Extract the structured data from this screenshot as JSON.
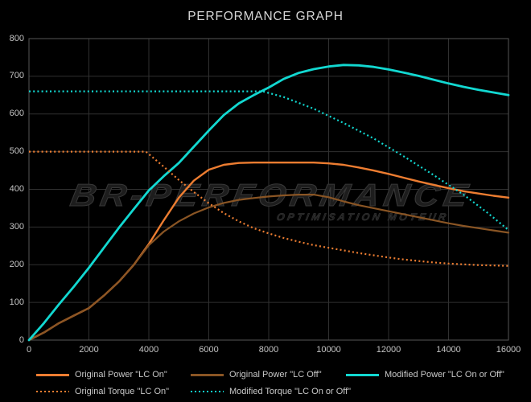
{
  "title": "PERFORMANCE GRAPH",
  "watermark": {
    "line1": "BR-PERFORMANCE",
    "line2": "OPTIMISATION MOTEUR"
  },
  "colors": {
    "background": "#000000",
    "grid": "#303030",
    "plot_border": "#565656",
    "axis_text": "#c4c4c4",
    "title_text": "#d6d6d6",
    "orange": "#ED7D31",
    "brown": "#8A5524",
    "cyan": "#12D8D1"
  },
  "chart_data": {
    "type": "line",
    "title": "PERFORMANCE GRAPH",
    "xlabel": "",
    "ylabel": "",
    "xlim": [
      0,
      16000
    ],
    "ylim": [
      0,
      800
    ],
    "x_ticks": [
      0,
      2000,
      4000,
      6000,
      8000,
      10000,
      12000,
      14000,
      16000
    ],
    "y_ticks": [
      0,
      100,
      200,
      300,
      400,
      500,
      600,
      700,
      800
    ],
    "grid": true,
    "legend_position": "bottom",
    "legend_rows": [
      [
        0,
        1,
        2
      ],
      [
        3,
        4
      ]
    ],
    "series": [
      {
        "name": "Original Power \"LC On\"",
        "color": "#ED7D31",
        "style": "solid",
        "width": 2.4,
        "points": [
          [
            0,
            0
          ],
          [
            500,
            20
          ],
          [
            1000,
            45
          ],
          [
            1500,
            65
          ],
          [
            2000,
            85
          ],
          [
            2500,
            118
          ],
          [
            3000,
            155
          ],
          [
            3500,
            200
          ],
          [
            4000,
            255
          ],
          [
            4500,
            318
          ],
          [
            5000,
            378
          ],
          [
            5500,
            423
          ],
          [
            6000,
            452
          ],
          [
            6500,
            465
          ],
          [
            7000,
            470
          ],
          [
            7500,
            471
          ],
          [
            8000,
            471
          ],
          [
            8500,
            471
          ],
          [
            9000,
            471
          ],
          [
            9500,
            471
          ],
          [
            10000,
            469
          ],
          [
            10500,
            465
          ],
          [
            11000,
            458
          ],
          [
            11500,
            450
          ],
          [
            12000,
            441
          ],
          [
            12500,
            431
          ],
          [
            13000,
            421
          ],
          [
            13500,
            412
          ],
          [
            14000,
            403
          ],
          [
            14500,
            395
          ],
          [
            15000,
            389
          ],
          [
            15500,
            383
          ],
          [
            16000,
            378
          ]
        ]
      },
      {
        "name": "Original Power \"LC Off\"",
        "color": "#8A5524",
        "style": "solid",
        "width": 2.2,
        "points": [
          [
            0,
            0
          ],
          [
            500,
            20
          ],
          [
            1000,
            45
          ],
          [
            1500,
            65
          ],
          [
            2000,
            85
          ],
          [
            2500,
            118
          ],
          [
            3000,
            155
          ],
          [
            3500,
            200
          ],
          [
            4000,
            252
          ],
          [
            4500,
            288
          ],
          [
            5000,
            315
          ],
          [
            5500,
            336
          ],
          [
            6000,
            352
          ],
          [
            6500,
            364
          ],
          [
            7000,
            372
          ],
          [
            7500,
            377
          ],
          [
            8000,
            381
          ],
          [
            8500,
            384
          ],
          [
            9000,
            386
          ],
          [
            9500,
            386
          ],
          [
            10000,
            379
          ],
          [
            10500,
            368
          ],
          [
            11000,
            358
          ],
          [
            11500,
            350
          ],
          [
            12000,
            342
          ],
          [
            12500,
            334
          ],
          [
            13000,
            326
          ],
          [
            13500,
            318
          ],
          [
            14000,
            310
          ],
          [
            14500,
            303
          ],
          [
            15000,
            297
          ],
          [
            15500,
            291
          ],
          [
            16000,
            285
          ]
        ]
      },
      {
        "name": "Modified Power \"LC On or Off\"",
        "color": "#12D8D1",
        "style": "solid",
        "width": 2.8,
        "points": [
          [
            0,
            0
          ],
          [
            500,
            45
          ],
          [
            1000,
            95
          ],
          [
            1500,
            142
          ],
          [
            2000,
            192
          ],
          [
            2500,
            245
          ],
          [
            3000,
            298
          ],
          [
            3500,
            348
          ],
          [
            4000,
            397
          ],
          [
            4500,
            435
          ],
          [
            5000,
            470
          ],
          [
            5500,
            513
          ],
          [
            6000,
            556
          ],
          [
            6500,
            597
          ],
          [
            7000,
            628
          ],
          [
            7500,
            650
          ],
          [
            8000,
            670
          ],
          [
            8500,
            693
          ],
          [
            9000,
            709
          ],
          [
            9500,
            719
          ],
          [
            10000,
            726
          ],
          [
            10500,
            730
          ],
          [
            11000,
            729
          ],
          [
            11500,
            725
          ],
          [
            12000,
            718
          ],
          [
            12500,
            710
          ],
          [
            13000,
            701
          ],
          [
            13500,
            691
          ],
          [
            14000,
            681
          ],
          [
            14500,
            672
          ],
          [
            15000,
            664
          ],
          [
            15500,
            657
          ],
          [
            16000,
            650
          ]
        ]
      },
      {
        "name": "Original Torque \"LC On\"",
        "color": "#ED7D31",
        "style": "dotted",
        "width": 2.2,
        "points": [
          [
            0,
            500
          ],
          [
            3900,
            500
          ],
          [
            4200,
            480
          ],
          [
            4500,
            460
          ],
          [
            5000,
            425
          ],
          [
            5500,
            393
          ],
          [
            6000,
            363
          ],
          [
            6500,
            337
          ],
          [
            7000,
            315
          ],
          [
            7500,
            297
          ],
          [
            8000,
            283
          ],
          [
            8500,
            271
          ],
          [
            9000,
            261
          ],
          [
            9500,
            252
          ],
          [
            10000,
            245
          ],
          [
            10500,
            238
          ],
          [
            11000,
            231
          ],
          [
            11500,
            225
          ],
          [
            12000,
            219
          ],
          [
            12500,
            214
          ],
          [
            13000,
            210
          ],
          [
            13500,
            206
          ],
          [
            14000,
            203
          ],
          [
            14500,
            201
          ],
          [
            15000,
            199
          ],
          [
            15500,
            198
          ],
          [
            16000,
            197
          ]
        ]
      },
      {
        "name": "Modified Torque \"LC On or Off\"",
        "color": "#12D8D1",
        "style": "dotted",
        "width": 2.2,
        "points": [
          [
            0,
            660
          ],
          [
            7800,
            660
          ],
          [
            8500,
            645
          ],
          [
            9500,
            614
          ],
          [
            10500,
            576
          ],
          [
            11500,
            535
          ],
          [
            12500,
            488
          ],
          [
            13500,
            438
          ],
          [
            14500,
            386
          ],
          [
            15300,
            338
          ],
          [
            16000,
            292
          ]
        ]
      }
    ]
  }
}
